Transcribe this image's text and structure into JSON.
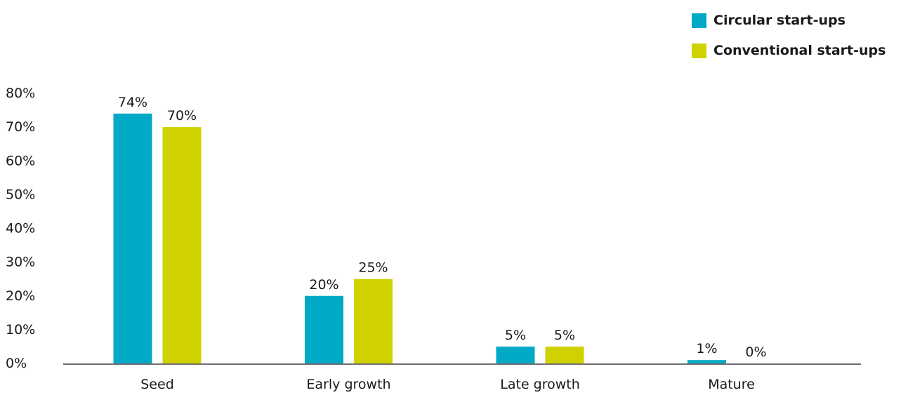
{
  "chart_data": {
    "type": "bar",
    "title": "",
    "xlabel": "",
    "ylabel": "",
    "categories": [
      "Seed",
      "Early growth",
      "Late growth",
      "Mature"
    ],
    "series": [
      {
        "name": "Circular start-ups",
        "color": "#00a9c6",
        "values": [
          74,
          20,
          5,
          1
        ],
        "labels": [
          "74%",
          "20%",
          "5%",
          "1%"
        ]
      },
      {
        "name": "Conventional start-ups",
        "color": "#d0d200",
        "values": [
          70,
          25,
          5,
          0
        ],
        "labels": [
          "70%",
          "25%",
          "5%",
          "0%"
        ]
      }
    ],
    "ylim": [
      0,
      80
    ],
    "yticks": [
      0,
      10,
      20,
      30,
      40,
      50,
      60,
      70,
      80
    ],
    "ytick_labels": [
      "0%",
      "10%",
      "20%",
      "30%",
      "40%",
      "50%",
      "60%",
      "70%",
      "80%"
    ],
    "grid": false,
    "legend_position": "top-right"
  }
}
